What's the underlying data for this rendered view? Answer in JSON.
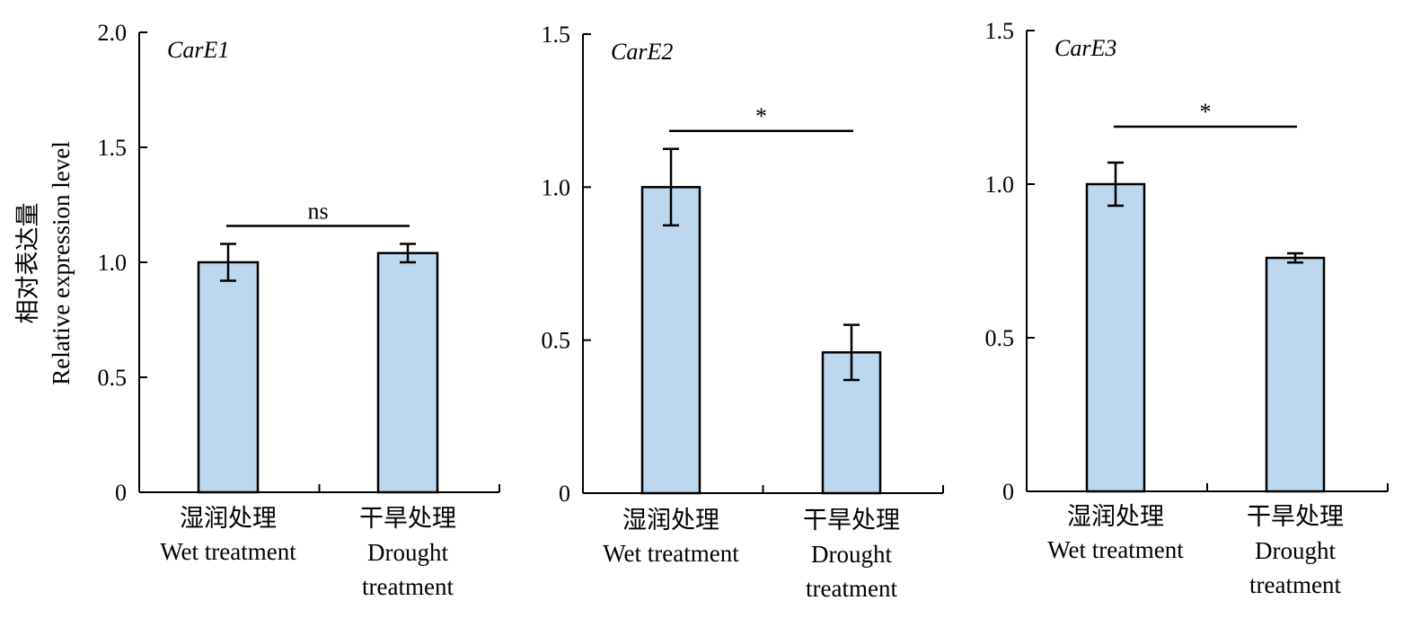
{
  "y_axis_title": {
    "line1": "相对表达量",
    "line2": "Relative expression level"
  },
  "colors": {
    "bar_fill": "#bdd7ee",
    "bar_stroke": "#000000",
    "axis": "#000000"
  },
  "chart_data": [
    {
      "type": "bar",
      "title": "CarE1",
      "categories": [
        [
          "湿润处理",
          "Wet treatment"
        ],
        [
          "干旱处理",
          "Drought",
          "treatment"
        ]
      ],
      "values": [
        1.0,
        1.04
      ],
      "errors": [
        0.08,
        0.04
      ],
      "ylim": [
        0,
        2.0
      ],
      "yticks": [
        0,
        0.5,
        1.0,
        1.5,
        2.0
      ],
      "ytick_labels": [
        "0",
        "0.5",
        "1.0",
        "1.5",
        "2.0"
      ],
      "significance": "ns",
      "grid": false
    },
    {
      "type": "bar",
      "title": "CarE2",
      "categories": [
        [
          "湿润处理",
          "Wet treatment"
        ],
        [
          "干旱处理",
          "Drought",
          "treatment"
        ]
      ],
      "values": [
        1.0,
        0.46
      ],
      "errors": [
        0.125,
        0.09
      ],
      "ylim": [
        0,
        1.5
      ],
      "yticks": [
        0,
        0.5,
        1.0,
        1.5
      ],
      "ytick_labels": [
        "0",
        "0.5",
        "1.0",
        "1.5"
      ],
      "significance": "*",
      "grid": false
    },
    {
      "type": "bar",
      "title": "CarE3",
      "categories": [
        [
          "湿润处理",
          "Wet treatment"
        ],
        [
          "干旱处理",
          "Drought",
          "treatment"
        ]
      ],
      "values": [
        1.0,
        0.76
      ],
      "errors": [
        0.07,
        0.015
      ],
      "ylim": [
        0,
        1.5
      ],
      "yticks": [
        0,
        0.5,
        1.0,
        1.5
      ],
      "ytick_labels": [
        "0",
        "0.5",
        "1.0",
        "1.5"
      ],
      "significance": "*",
      "grid": false
    }
  ]
}
